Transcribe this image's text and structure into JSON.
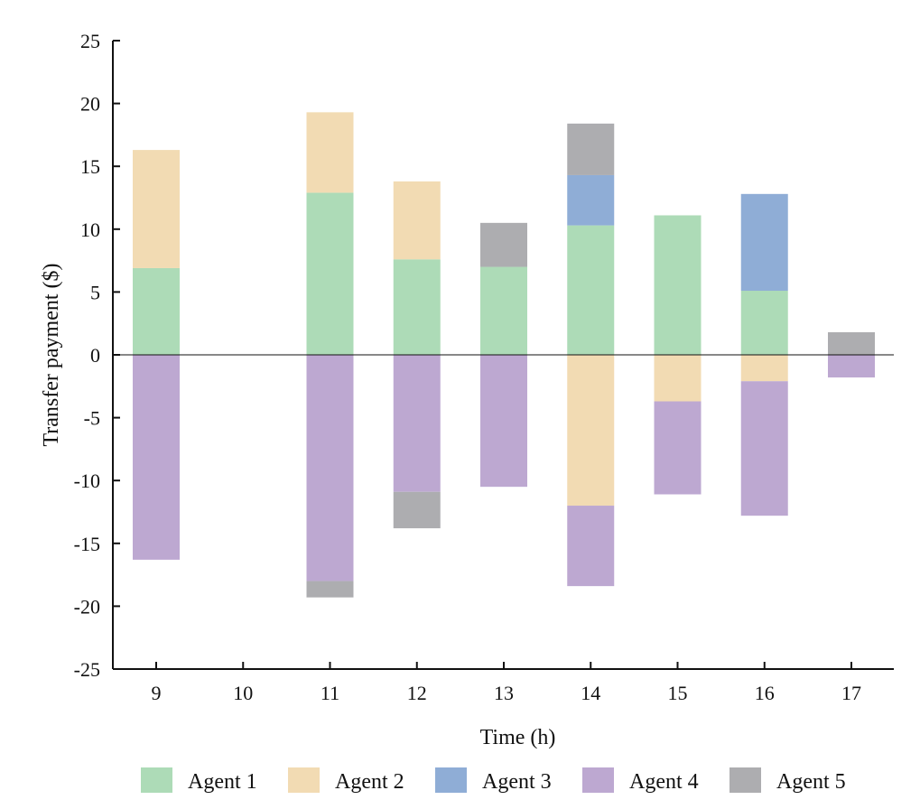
{
  "chart_data": {
    "type": "bar",
    "stacked": true,
    "title": "",
    "xlabel": "Time (h)",
    "ylabel": "Transfer payment ($)",
    "ylim": [
      -25,
      25
    ],
    "yticks": [
      25,
      20,
      15,
      10,
      5,
      0,
      -5,
      -10,
      -15,
      -20,
      -25
    ],
    "categories": [
      "9",
      "10",
      "11",
      "12",
      "13",
      "14",
      "15",
      "16",
      "17"
    ],
    "legend_position": "bottom",
    "series": [
      {
        "name": "Agent 1",
        "color": "#addbb7",
        "values": [
          6.9,
          0,
          12.9,
          7.6,
          7.0,
          10.3,
          11.1,
          5.1,
          0
        ]
      },
      {
        "name": "Agent 2",
        "color": "#f2dbb3",
        "values": [
          9.4,
          0,
          6.4,
          6.2,
          0,
          -12.0,
          -3.7,
          -2.1,
          0
        ]
      },
      {
        "name": "Agent 3",
        "color": "#8fadd6",
        "values": [
          0,
          0,
          0,
          0,
          0,
          4.0,
          0,
          7.7,
          0
        ]
      },
      {
        "name": "Agent 4",
        "color": "#bda8d1",
        "values": [
          -16.3,
          0,
          -18.0,
          -10.9,
          -10.5,
          -6.4,
          -7.4,
          -10.7,
          -1.8
        ]
      },
      {
        "name": "Agent 5",
        "color": "#adadb0",
        "values": [
          0,
          0,
          -1.3,
          -2.9,
          3.5,
          4.1,
          0,
          0,
          1.8
        ]
      }
    ]
  }
}
